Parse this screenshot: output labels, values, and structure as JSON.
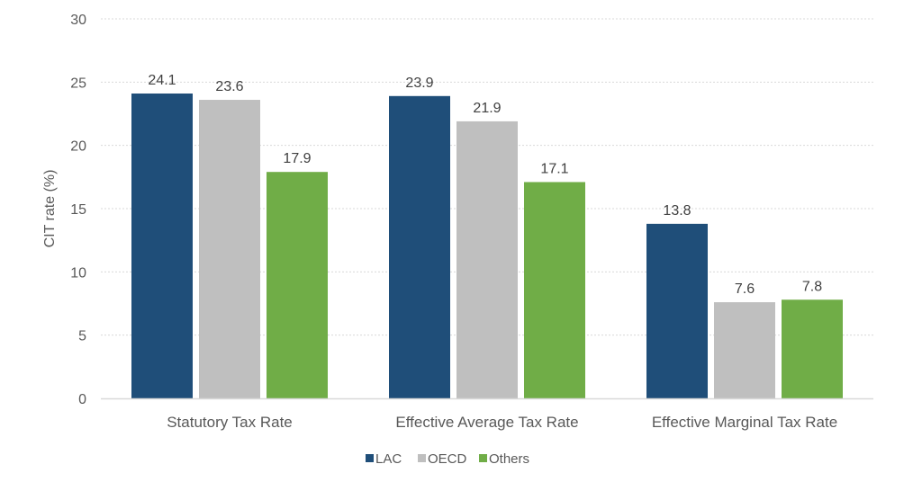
{
  "chart_data": {
    "type": "bar",
    "title": "",
    "xlabel": "",
    "ylabel": "CIT rate (%)",
    "ylim": [
      0,
      30
    ],
    "yticks": [
      0,
      5,
      10,
      15,
      20,
      25,
      30
    ],
    "grid": true,
    "legend_position": "bottom",
    "categories": [
      "Statutory Tax Rate",
      "Effective Average Tax Rate",
      "Effective Marginal Tax Rate"
    ],
    "series": [
      {
        "name": "LAC",
        "color": "#1f4e79",
        "values": [
          24.1,
          23.9,
          13.8
        ],
        "labels": [
          "24.1",
          "23.9",
          "13.8"
        ]
      },
      {
        "name": "OECD",
        "color": "#bfbfbf",
        "values": [
          23.6,
          21.9,
          7.6
        ],
        "labels": [
          "23.6",
          "21.9",
          "7.6"
        ]
      },
      {
        "name": "Others",
        "color": "#70ad47",
        "values": [
          17.9,
          17.1,
          7.8
        ],
        "labels": [
          "17.9",
          "17.1",
          "7.8"
        ]
      }
    ]
  }
}
